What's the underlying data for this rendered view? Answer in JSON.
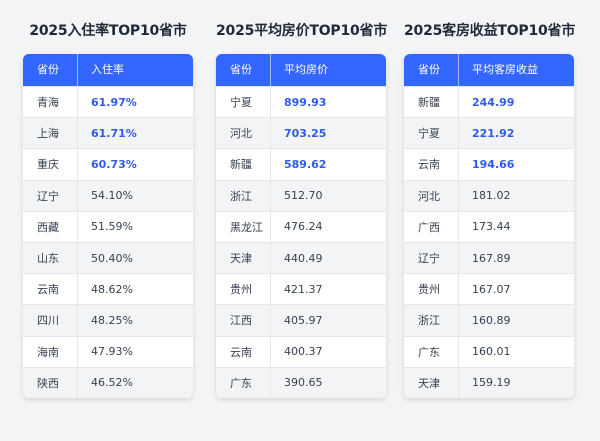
{
  "tables": [
    {
      "title": "2025入住率TOP10省市",
      "header": [
        "省份",
        "入住率"
      ],
      "rows": [
        [
          "青海",
          "61.97%"
        ],
        [
          "上海",
          "61.71%"
        ],
        [
          "重庆",
          "60.73%"
        ],
        [
          "辽宁",
          "54.10%"
        ],
        [
          "西藏",
          "51.59%"
        ],
        [
          "山东",
          "50.40%"
        ],
        [
          "云南",
          "48.62%"
        ],
        [
          "四川",
          "48.25%"
        ],
        [
          "海南",
          "47.93%"
        ],
        [
          "陕西",
          "46.52%"
        ]
      ]
    },
    {
      "title": "2025平均房价TOP10省市",
      "header": [
        "省份",
        "平均房价"
      ],
      "rows": [
        [
          "宁夏",
          "899.93"
        ],
        [
          "河北",
          "703.25"
        ],
        [
          "新疆",
          "589.62"
        ],
        [
          "浙江",
          "512.70"
        ],
        [
          "黑龙江",
          "476.24"
        ],
        [
          "天津",
          "440.49"
        ],
        [
          "贵州",
          "421.37"
        ],
        [
          "江西",
          "405.97"
        ],
        [
          "云南",
          "400.37"
        ],
        [
          "广东",
          "390.65"
        ]
      ]
    },
    {
      "title": "2025客房收益TOP10省市",
      "header": [
        "省份",
        "平均客房收益"
      ],
      "rows": [
        [
          "新疆",
          "244.99"
        ],
        [
          "宁夏",
          "221.92"
        ],
        [
          "云南",
          "194.66"
        ],
        [
          "河北",
          "181.02"
        ],
        [
          "广西",
          "173.44"
        ],
        [
          "辽宁",
          "167.89"
        ],
        [
          "贵州",
          "167.07"
        ],
        [
          "浙江",
          "160.89"
        ],
        [
          "广东",
          "160.01"
        ],
        [
          "天津",
          "159.19"
        ]
      ]
    }
  ],
  "colors": {
    "header_bg": "#3366ff",
    "highlight_text": "#2f5bea",
    "alt_row_bg": "#f3f4f6",
    "page_bg": "#f3f4f6"
  }
}
